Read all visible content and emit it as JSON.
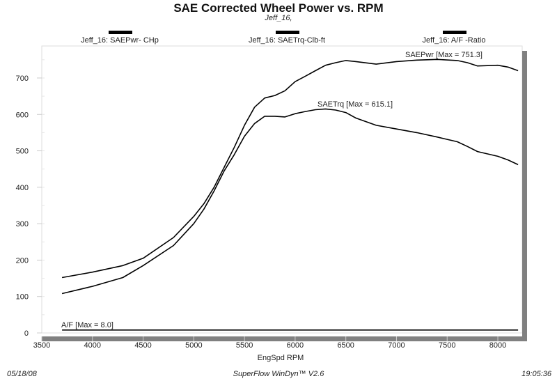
{
  "chart_data": {
    "type": "line",
    "title": "SAE Corrected Wheel Power vs. RPM",
    "subtitle": "Jeff_16,",
    "xlabel": "EngSpd  RPM",
    "ylabel": "",
    "xlim": [
      3500,
      8300
    ],
    "ylim": [
      0,
      780
    ],
    "x_ticks": [
      "3500",
      "4000",
      "4500",
      "5000",
      "5500",
      "6000",
      "6500",
      "7000",
      "7500",
      "8000"
    ],
    "y_ticks": [
      "0",
      "100",
      "200",
      "300",
      "400",
      "500",
      "600",
      "700"
    ],
    "grid": false,
    "legend": [
      {
        "label": "Jeff_16: SAEPwr- CHp",
        "color": "#000000"
      },
      {
        "label": "Jeff_16: SAETrq-Clb-ft",
        "color": "#000000"
      },
      {
        "label": "Jeff_16:  A/F  -Ratio",
        "color": "#000000"
      }
    ],
    "legend_position": "top",
    "series": [
      {
        "name": "SAEPwr",
        "annotation": "SAEPwr [Max = 751.3]",
        "x": [
          3700,
          4000,
          4300,
          4500,
          4800,
          5000,
          5100,
          5200,
          5300,
          5400,
          5500,
          5600,
          5700,
          5800,
          5900,
          6000,
          6100,
          6200,
          6300,
          6400,
          6500,
          6600,
          6800,
          7000,
          7200,
          7400,
          7600,
          7700,
          7800,
          8000,
          8100,
          8200
        ],
        "values": [
          152,
          167,
          185,
          205,
          262,
          320,
          355,
          400,
          455,
          510,
          570,
          620,
          645,
          652,
          665,
          690,
          705,
          720,
          735,
          742,
          748,
          745,
          738,
          745,
          749,
          751,
          748,
          742,
          733,
          735,
          730,
          720
        ]
      },
      {
        "name": "SAETrq",
        "annotation": "SAETrq [Max = 615.1]",
        "x": [
          3700,
          4000,
          4300,
          4500,
          4800,
          5000,
          5100,
          5200,
          5300,
          5400,
          5500,
          5600,
          5700,
          5800,
          5900,
          6000,
          6100,
          6200,
          6300,
          6400,
          6500,
          6600,
          6800,
          7000,
          7200,
          7400,
          7600,
          7700,
          7800,
          8000,
          8100,
          8200
        ],
        "values": [
          108,
          128,
          152,
          185,
          240,
          300,
          340,
          390,
          445,
          490,
          540,
          575,
          595,
          595,
          593,
          602,
          608,
          613,
          615,
          612,
          605,
          590,
          570,
          560,
          550,
          538,
          525,
          512,
          498,
          485,
          475,
          462
        ]
      },
      {
        "name": "A/F",
        "annotation": "A/F   [Max = 8.0]",
        "x": [
          3700,
          8200
        ],
        "values": [
          8.0,
          8.0
        ]
      }
    ]
  },
  "footer": {
    "date": "05/18/08",
    "software": "SuperFlow WinDyn™ V2.6",
    "time": "19:05:36"
  }
}
